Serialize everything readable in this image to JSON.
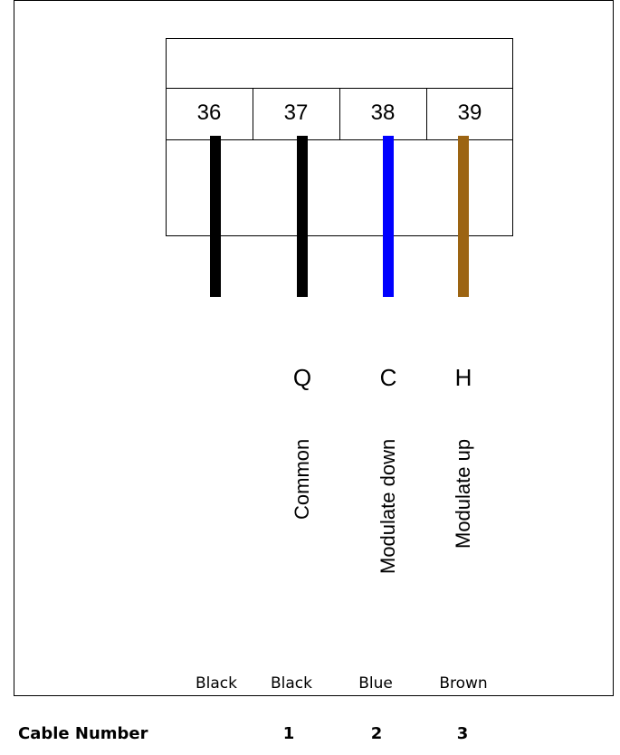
{
  "terminals": [
    {
      "number": "36",
      "wire_color": "#000000",
      "letter": "",
      "function": "",
      "color_name": "Black",
      "cable": ""
    },
    {
      "number": "37",
      "wire_color": "#000000",
      "letter": "Q",
      "function": "Common",
      "color_name": "Black",
      "cable": "1"
    },
    {
      "number": "38",
      "wire_color": "#0000ff",
      "letter": "C",
      "function": "Modulate down",
      "color_name": "Blue",
      "cable": "2"
    },
    {
      "number": "39",
      "wire_color": "#9c6412",
      "letter": "H",
      "function": "Modulate up",
      "color_name": "Brown",
      "cable": "3"
    }
  ],
  "cable_row": {
    "label": "Cable Number"
  }
}
